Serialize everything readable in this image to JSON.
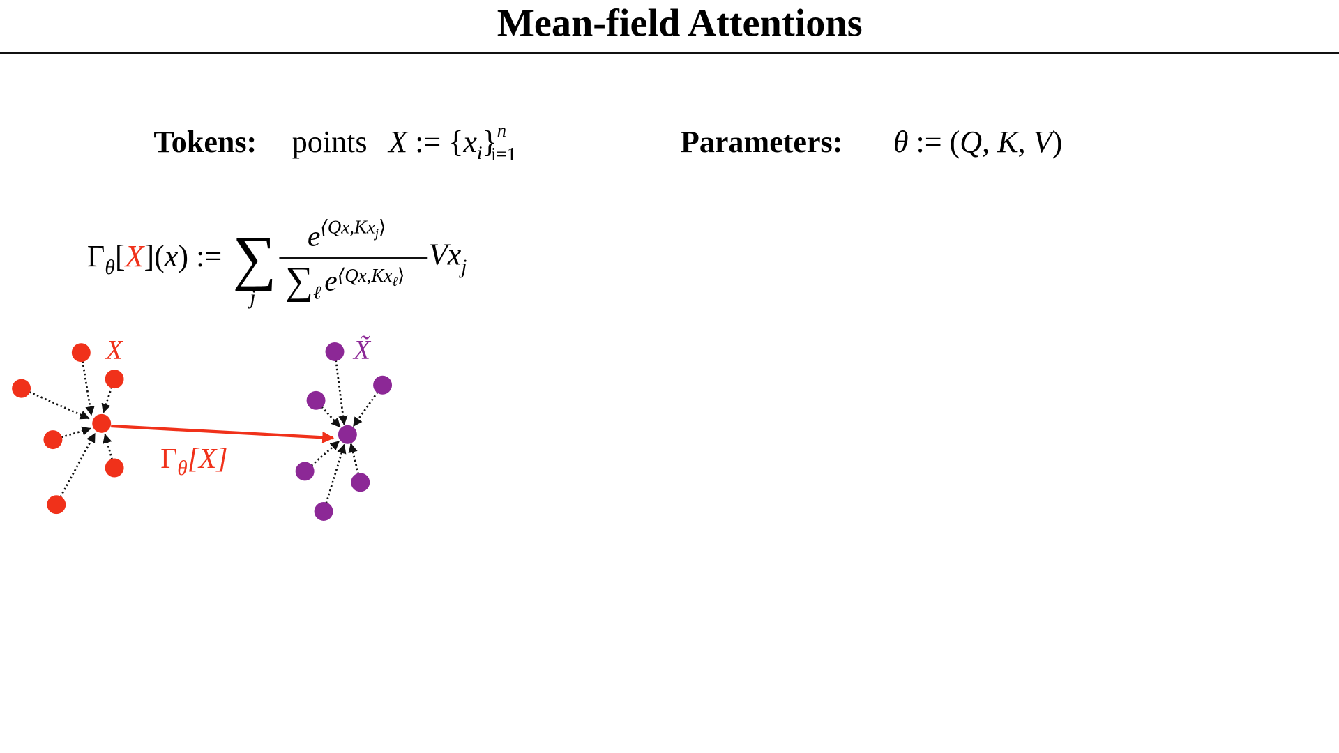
{
  "title": "Mean-field Attentions",
  "tokens": {
    "label": "Tokens:",
    "text": "points",
    "math": [
      "X",
      " := {",
      "x",
      "i",
      "}",
      "n",
      "i=1"
    ]
  },
  "parameters": {
    "label": "Parameters:",
    "math": [
      "θ",
      " := (",
      "Q",
      ", ",
      "K",
      ", ",
      "V",
      ")"
    ]
  },
  "formula": {
    "lhs": [
      "Γ",
      "θ",
      "[",
      "X",
      "](",
      "x",
      ") :="
    ],
    "sum": "∑",
    "sum_index": "j",
    "numerator": [
      "e",
      "⟨Qx,Kx",
      "j",
      "⟩"
    ],
    "denominator": [
      "∑",
      "ℓ",
      "e",
      "⟨Qx,Kx",
      "ℓ",
      "⟩"
    ],
    "tail": [
      "Vx",
      "j"
    ]
  },
  "diagram": {
    "input_label": "X",
    "output_label": "X̃",
    "map_label": [
      "Γ",
      "θ",
      "[X]"
    ]
  }
}
